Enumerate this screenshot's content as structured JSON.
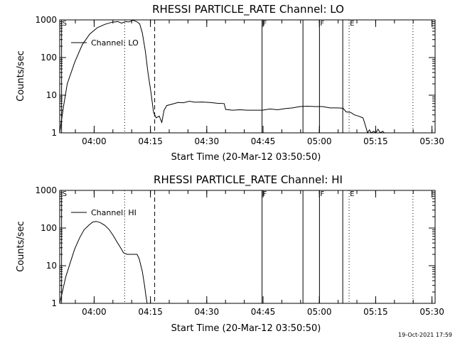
{
  "chart_data": [
    {
      "type": "line",
      "title": "RHESSI PARTICLE_RATE Channel: LO",
      "xlabel": "Start Time (20-Mar-12 03:50:50)",
      "ylabel": "Counts/sec",
      "y_scale": "log",
      "ylim": [
        1,
        1000
      ],
      "xlim_min": [
        0,
        100
      ],
      "x_ticks": [
        {
          "min": 9.17,
          "label": "04:00"
        },
        {
          "min": 24.17,
          "label": "04:15"
        },
        {
          "min": 39.17,
          "label": "04:30"
        },
        {
          "min": 54.17,
          "label": "04:45"
        },
        {
          "min": 69.17,
          "label": "05:00"
        },
        {
          "min": 84.17,
          "label": "05:15"
        },
        {
          "min": 99.17,
          "label": "05:30"
        }
      ],
      "y_ticks": [
        {
          "value": 1,
          "label": "1"
        },
        {
          "value": 10,
          "label": "10"
        },
        {
          "value": 100,
          "label": "100"
        },
        {
          "value": 1000,
          "label": "1000"
        }
      ],
      "legend": "Channel: LO",
      "markers": [
        {
          "x": 0.5,
          "label": "S",
          "style": "solid"
        },
        {
          "x": 17.3,
          "label": "",
          "style": "dotted"
        },
        {
          "x": 25.3,
          "label": "",
          "style": "dashed"
        },
        {
          "x": 53.9,
          "label": "F",
          "style": "solid"
        },
        {
          "x": 64.8,
          "label": "",
          "style": "solid"
        },
        {
          "x": 69.2,
          "label": "F",
          "style": "solid"
        },
        {
          "x": 75.4,
          "label": "",
          "style": "solid"
        },
        {
          "x": 77.1,
          "label": "E",
          "style": "dotted"
        },
        {
          "x": 94.1,
          "label": "",
          "style": "dotted"
        }
      ],
      "series": [
        {
          "name": "Channel: LO",
          "points": [
            [
              0.0,
              1.0
            ],
            [
              1.0,
              5.0
            ],
            [
              2.0,
              20.0
            ],
            [
              4.0,
              75.0
            ],
            [
              6.0,
              220.0
            ],
            [
              8.0,
              420.0
            ],
            [
              10.0,
              620.0
            ],
            [
              12.0,
              760.0
            ],
            [
              14.0,
              870.0
            ],
            [
              15.5,
              900.0
            ],
            [
              16.5,
              820.0
            ],
            [
              17.5,
              900.0
            ],
            [
              18.5,
              880.0
            ],
            [
              19.5,
              980.0
            ],
            [
              20.5,
              900.0
            ],
            [
              21.3,
              780.0
            ],
            [
              22.0,
              450.0
            ],
            [
              22.8,
              150.0
            ],
            [
              23.5,
              40.0
            ],
            [
              24.3,
              12.0
            ],
            [
              25.0,
              3.5
            ],
            [
              25.7,
              2.5
            ],
            [
              26.5,
              2.8
            ],
            [
              27.2,
              1.9
            ],
            [
              27.8,
              4.0
            ],
            [
              28.5,
              5.3
            ],
            [
              30.0,
              5.8
            ],
            [
              31.5,
              6.4
            ],
            [
              33.0,
              6.3
            ],
            [
              34.5,
              6.9
            ],
            [
              36.0,
              6.5
            ],
            [
              38.0,
              6.6
            ],
            [
              40.0,
              6.4
            ],
            [
              42.0,
              6.1
            ],
            [
              43.8,
              6.0
            ],
            [
              44.2,
              4.2
            ],
            [
              46.0,
              4.0
            ],
            [
              48.0,
              4.1
            ],
            [
              50.0,
              4.0
            ],
            [
              52.0,
              4.0
            ],
            [
              54.0,
              4.0
            ],
            [
              56.0,
              4.3
            ],
            [
              58.0,
              4.1
            ],
            [
              60.0,
              4.4
            ],
            [
              62.0,
              4.6
            ],
            [
              64.0,
              5.0
            ],
            [
              66.0,
              5.1
            ],
            [
              68.0,
              5.0
            ],
            [
              70.0,
              5.0
            ],
            [
              72.0,
              4.6
            ],
            [
              74.0,
              4.6
            ],
            [
              75.5,
              4.5
            ],
            [
              76.3,
              3.6
            ],
            [
              77.5,
              3.5
            ],
            [
              78.5,
              3.0
            ],
            [
              79.5,
              2.8
            ],
            [
              80.8,
              2.5
            ],
            [
              81.5,
              1.5
            ],
            [
              82.0,
              1.0
            ],
            [
              82.5,
              1.2
            ],
            [
              83.0,
              1.0
            ],
            [
              83.6,
              1.1
            ],
            [
              84.2,
              1.0
            ],
            [
              84.8,
              1.25
            ],
            [
              85.4,
              1.0
            ],
            [
              86.0,
              1.1
            ],
            [
              86.5,
              1.0
            ]
          ]
        }
      ]
    },
    {
      "type": "line",
      "title": "RHESSI PARTICLE_RATE Channel: HI",
      "xlabel": "Start Time (20-Mar-12 03:50:50)",
      "ylabel": "Counts/sec",
      "y_scale": "log",
      "ylim": [
        1,
        1000
      ],
      "xlim_min": [
        0,
        100
      ],
      "x_ticks": [
        {
          "min": 9.17,
          "label": "04:00"
        },
        {
          "min": 24.17,
          "label": "04:15"
        },
        {
          "min": 39.17,
          "label": "04:30"
        },
        {
          "min": 54.17,
          "label": "04:45"
        },
        {
          "min": 69.17,
          "label": "05:00"
        },
        {
          "min": 84.17,
          "label": "05:15"
        },
        {
          "min": 99.17,
          "label": "05:30"
        }
      ],
      "y_ticks": [
        {
          "value": 1,
          "label": "1"
        },
        {
          "value": 10,
          "label": "10"
        },
        {
          "value": 100,
          "label": "100"
        },
        {
          "value": 1000,
          "label": "1000"
        }
      ],
      "legend": "Channel: HI",
      "markers": [
        {
          "x": 0.5,
          "label": "S",
          "style": "solid"
        },
        {
          "x": 17.3,
          "label": "",
          "style": "dotted"
        },
        {
          "x": 25.3,
          "label": "",
          "style": "dashed"
        },
        {
          "x": 53.9,
          "label": "F",
          "style": "solid"
        },
        {
          "x": 64.8,
          "label": "",
          "style": "solid"
        },
        {
          "x": 69.2,
          "label": "F",
          "style": "solid"
        },
        {
          "x": 75.4,
          "label": "",
          "style": "solid"
        },
        {
          "x": 77.1,
          "label": "E",
          "style": "dotted"
        },
        {
          "x": 94.1,
          "label": "",
          "style": "dotted"
        }
      ],
      "series": [
        {
          "name": "Channel: HI",
          "points": [
            [
              0.0,
              1.0
            ],
            [
              0.8,
              2.2
            ],
            [
              1.6,
              5.0
            ],
            [
              2.8,
              12.0
            ],
            [
              4.0,
              28.0
            ],
            [
              5.3,
              55.0
            ],
            [
              6.5,
              90.0
            ],
            [
              7.8,
              120.0
            ],
            [
              8.8,
              145.0
            ],
            [
              9.8,
              150.0
            ],
            [
              10.8,
              140.0
            ],
            [
              12.0,
              118.0
            ],
            [
              13.2,
              90.0
            ],
            [
              14.3,
              62.0
            ],
            [
              15.3,
              42.0
            ],
            [
              16.3,
              29.0
            ],
            [
              17.0,
              22.0
            ],
            [
              18.0,
              20.0
            ],
            [
              19.0,
              20.0
            ],
            [
              20.0,
              20.0
            ],
            [
              20.6,
              20.0
            ],
            [
              21.2,
              15.0
            ],
            [
              22.0,
              7.0
            ],
            [
              22.6,
              3.0
            ],
            [
              23.0,
              1.5
            ],
            [
              23.3,
              1.0
            ]
          ]
        }
      ]
    }
  ],
  "footer": {
    "timestamp": "19-Oct-2021 17:59"
  }
}
